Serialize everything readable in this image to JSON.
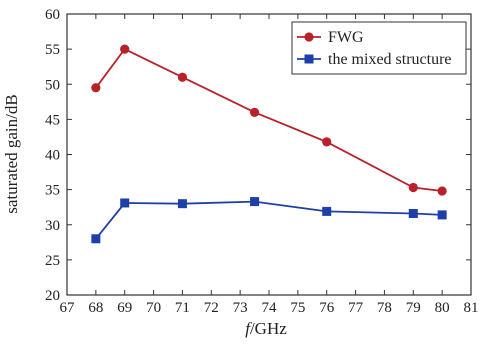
{
  "chart_data": {
    "type": "line",
    "x_ticks": [
      "67",
      "68",
      "69",
      "70",
      "71",
      "72",
      "73",
      "74",
      "75",
      "76",
      "77",
      "78",
      "79",
      "80",
      "81"
    ],
    "y_ticks": [
      "20",
      "25",
      "30",
      "35",
      "40",
      "45",
      "50",
      "55",
      "60"
    ],
    "xlim": [
      67,
      81
    ],
    "ylim": [
      20,
      60
    ],
    "xlabel_italic": "f",
    "xlabel_rest": "/GHz",
    "ylabel": "saturated gain/dB",
    "grid": false,
    "legend_position": "top-right",
    "series": [
      {
        "name": "FWG",
        "color": "#b8202a",
        "marker": "circle",
        "points": [
          [
            68,
            49.5
          ],
          [
            69,
            55.0
          ],
          [
            71,
            51.0
          ],
          [
            73.5,
            46.0
          ],
          [
            76,
            41.8
          ],
          [
            79,
            35.3
          ],
          [
            80,
            34.8
          ]
        ]
      },
      {
        "name": "the mixed structure",
        "color": "#1f3fa8",
        "marker": "square",
        "points": [
          [
            68,
            28.0
          ],
          [
            69,
            33.1
          ],
          [
            71,
            33.0
          ],
          [
            73.5,
            33.3
          ],
          [
            76,
            31.9
          ],
          [
            79,
            31.6
          ],
          [
            80,
            31.4
          ]
        ]
      }
    ]
  }
}
